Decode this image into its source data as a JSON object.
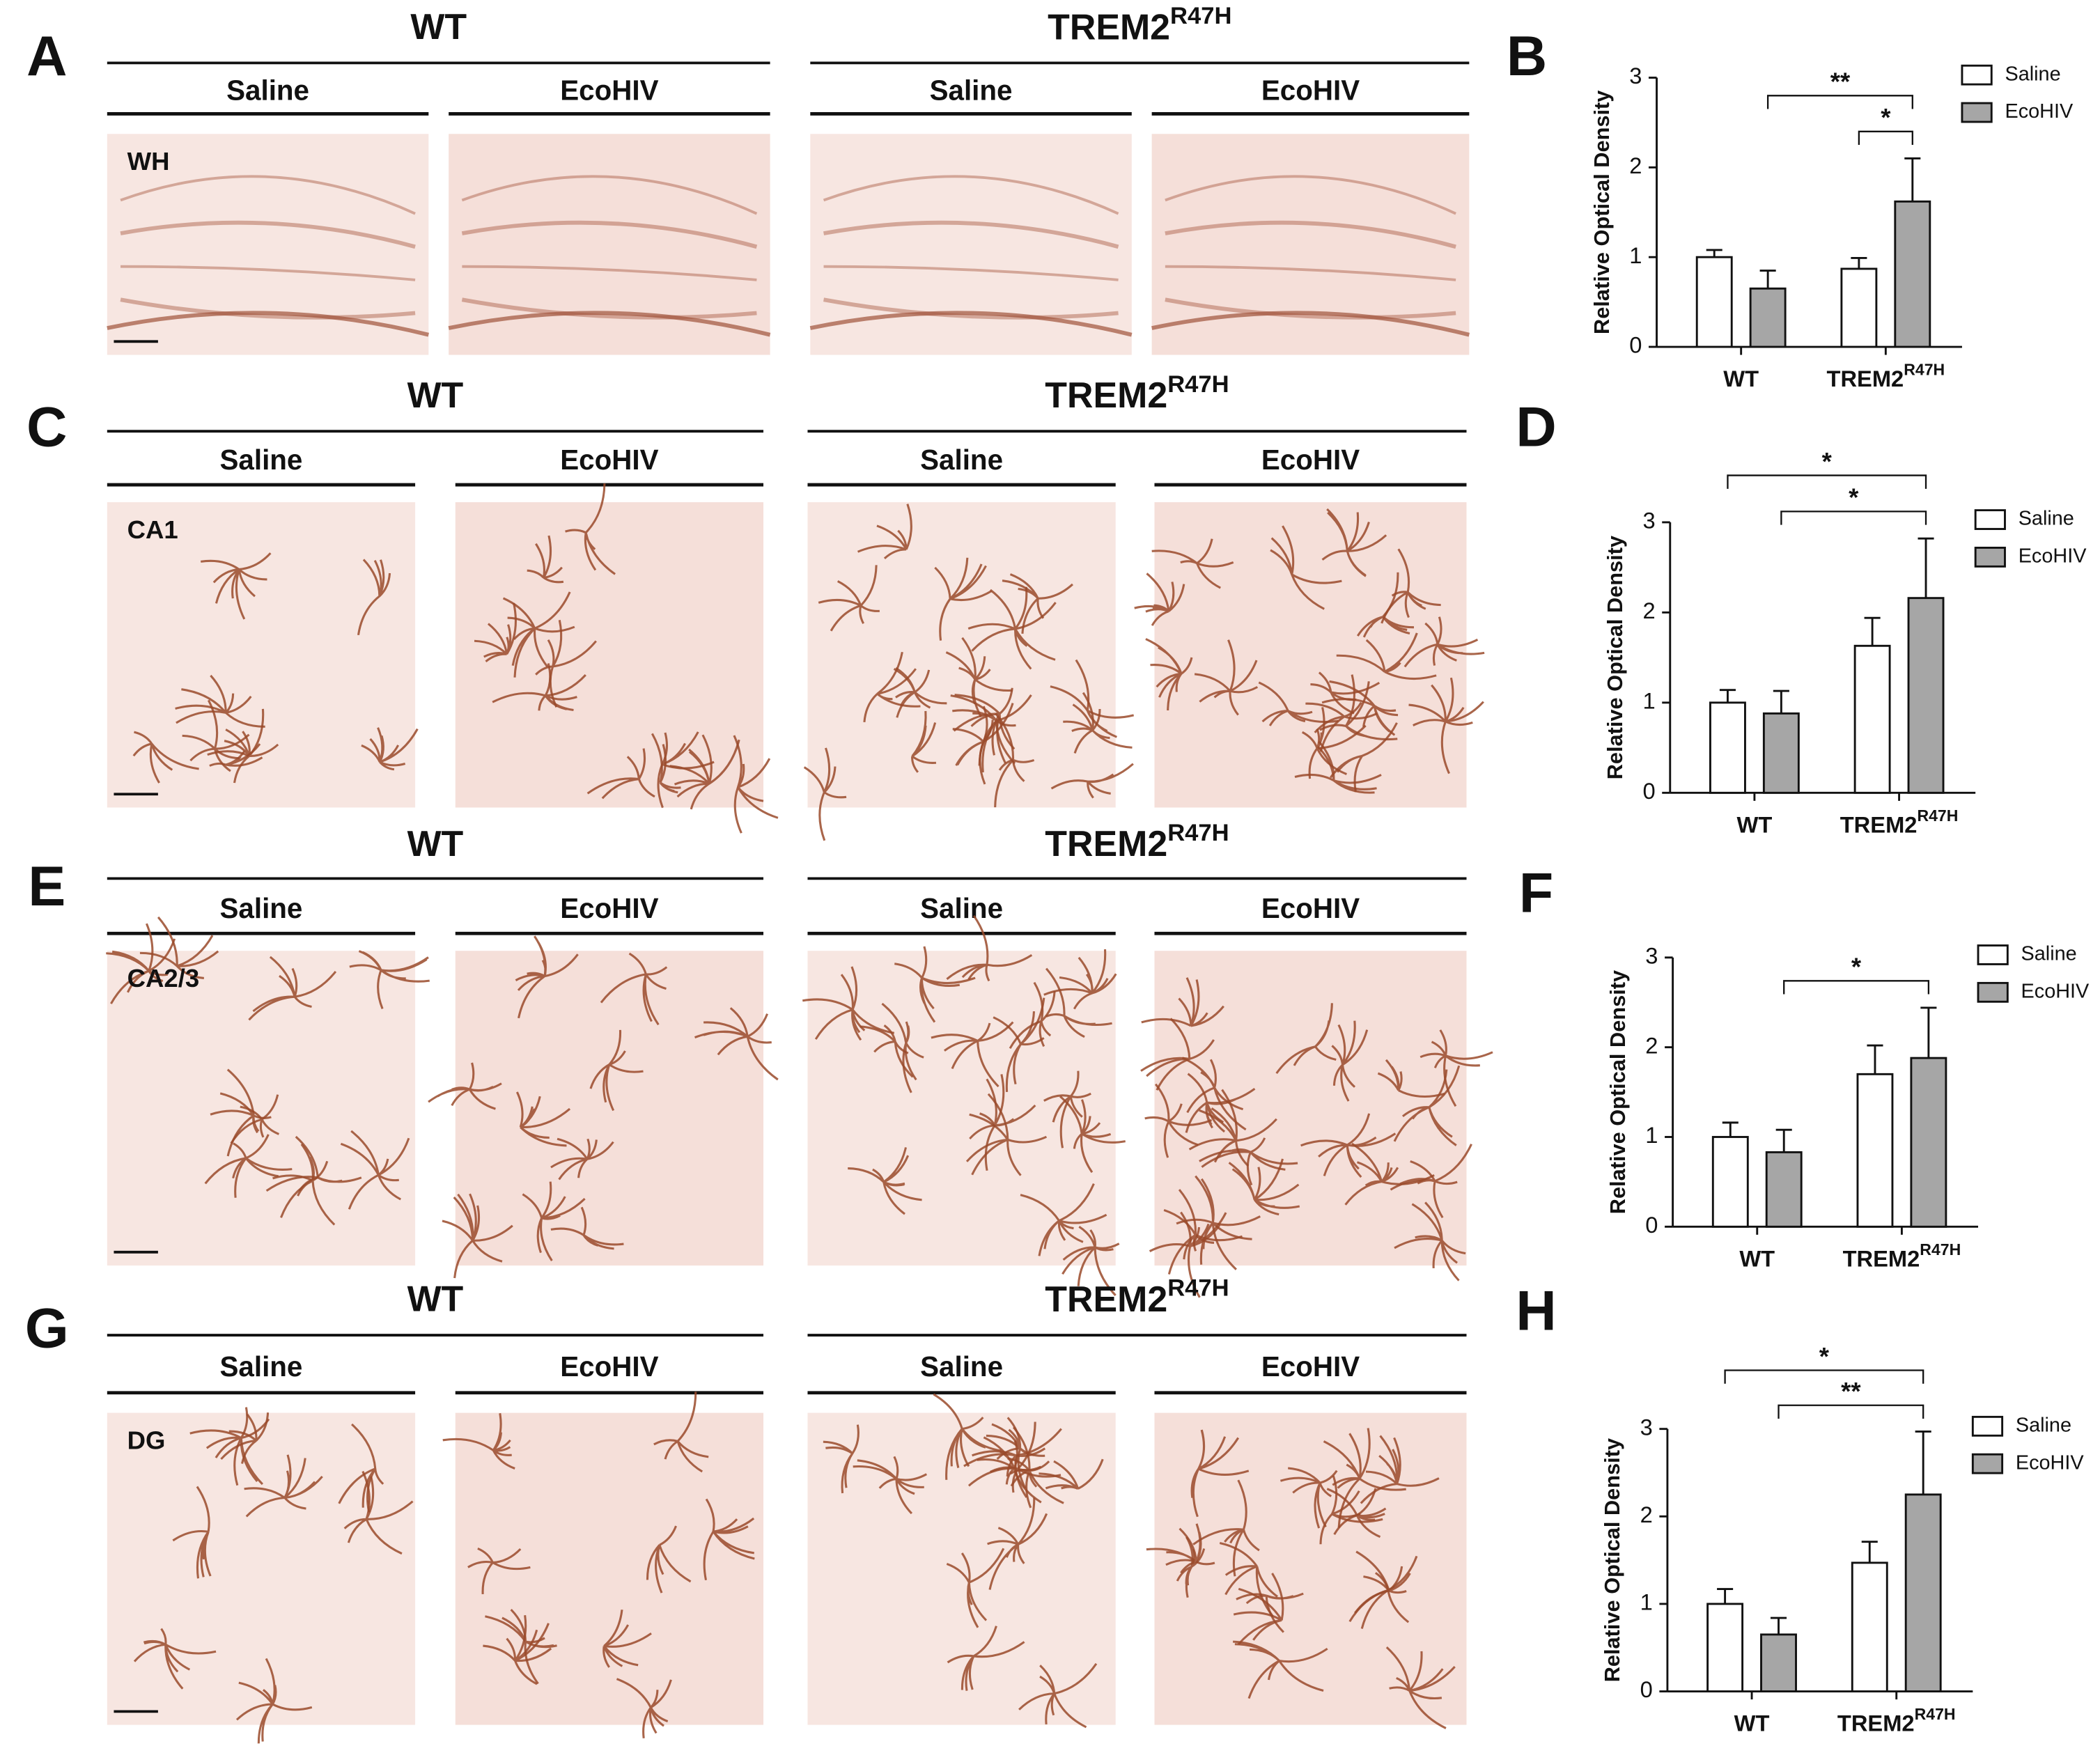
{
  "figure": {
    "rows": [
      {
        "letter": "A",
        "region": "WH",
        "wt": "WT",
        "trem2": "TREM2",
        "trem2_sup": "R47H",
        "conditions": [
          "Saline",
          "EcoHIV",
          "Saline",
          "EcoHIV"
        ]
      },
      {
        "letter": "C",
        "region": "CA1",
        "wt": "WT",
        "trem2": "TREM2",
        "trem2_sup": "R47H",
        "conditions": [
          "Saline",
          "EcoHIV",
          "Saline",
          "EcoHIV"
        ]
      },
      {
        "letter": "E",
        "region": "CA2/3",
        "wt": "WT",
        "trem2": "TREM2",
        "trem2_sup": "R47H",
        "conditions": [
          "Saline",
          "EcoHIV",
          "Saline",
          "EcoHIV"
        ]
      },
      {
        "letter": "G",
        "region": "DG",
        "wt": "WT",
        "trem2": "TREM2",
        "trem2_sup": "R47H",
        "conditions": [
          "Saline",
          "EcoHIV",
          "Saline",
          "EcoHIV"
        ]
      }
    ]
  },
  "chart_data": [
    {
      "type": "bar",
      "letter": "B",
      "ylabel": "Relative Optical Density",
      "categories": [
        {
          "label": "WT"
        },
        {
          "label": "TREM2",
          "sup": "R47H"
        }
      ],
      "series": [
        {
          "name": "Saline",
          "color": "#ffffff",
          "values": [
            1.0,
            0.87
          ],
          "errors": [
            0.08,
            0.12
          ]
        },
        {
          "name": "EcoHIV",
          "color": "#a6a6a6",
          "values": [
            0.65,
            1.62
          ],
          "errors": [
            0.2,
            0.48
          ]
        }
      ],
      "ylim": [
        0,
        3
      ],
      "yticks": [
        0,
        1,
        2,
        3
      ],
      "brackets": [
        {
          "label": "*",
          "from": {
            "category": 1,
            "series": 0
          },
          "to": {
            "category": 1,
            "series": 1
          }
        },
        {
          "label": "**",
          "from": {
            "category": 0,
            "series": 1
          },
          "to": {
            "category": 1,
            "series": 1
          }
        }
      ]
    },
    {
      "type": "bar",
      "letter": "D",
      "ylabel": "Relative Optical Density",
      "categories": [
        {
          "label": "WT"
        },
        {
          "label": "TREM2",
          "sup": "R47H"
        }
      ],
      "series": [
        {
          "name": "Saline",
          "color": "#ffffff",
          "values": [
            1.0,
            1.63
          ],
          "errors": [
            0.14,
            0.31
          ]
        },
        {
          "name": "EcoHIV",
          "color": "#a6a6a6",
          "values": [
            0.88,
            2.16
          ],
          "errors": [
            0.25,
            0.66
          ]
        }
      ],
      "ylim": [
        0,
        3
      ],
      "yticks": [
        0,
        1,
        2,
        3
      ],
      "brackets": [
        {
          "label": "*",
          "from": {
            "category": 0,
            "series": 1
          },
          "to": {
            "category": 1,
            "series": 1
          }
        },
        {
          "label": "*",
          "from": {
            "category": 0,
            "series": 0
          },
          "to": {
            "category": 1,
            "series": 1
          }
        }
      ]
    },
    {
      "type": "bar",
      "letter": "F",
      "ylabel": "Relative Optical Density",
      "categories": [
        {
          "label": "WT"
        },
        {
          "label": "TREM2",
          "sup": "R47H"
        }
      ],
      "series": [
        {
          "name": "Saline",
          "color": "#ffffff",
          "values": [
            1.0,
            1.7
          ],
          "errors": [
            0.16,
            0.32
          ]
        },
        {
          "name": "EcoHIV",
          "color": "#a6a6a6",
          "values": [
            0.83,
            1.88
          ],
          "errors": [
            0.25,
            0.56
          ]
        }
      ],
      "ylim": [
        0,
        3
      ],
      "yticks": [
        0,
        1,
        2,
        3
      ],
      "brackets": [
        {
          "label": "*",
          "from": {
            "category": 0,
            "series": 1
          },
          "to": {
            "category": 1,
            "series": 1
          }
        }
      ]
    },
    {
      "type": "bar",
      "letter": "H",
      "ylabel": "Relative Optical Density",
      "categories": [
        {
          "label": "WT"
        },
        {
          "label": "TREM2",
          "sup": "R47H"
        }
      ],
      "series": [
        {
          "name": "Saline",
          "color": "#ffffff",
          "values": [
            1.0,
            1.47
          ],
          "errors": [
            0.17,
            0.24
          ]
        },
        {
          "name": "EcoHIV",
          "color": "#a6a6a6",
          "values": [
            0.65,
            2.25
          ],
          "errors": [
            0.19,
            0.72
          ]
        }
      ],
      "ylim": [
        0,
        3
      ],
      "yticks": [
        0,
        1,
        2,
        3
      ],
      "brackets": [
        {
          "label": "**",
          "from": {
            "category": 0,
            "series": 1
          },
          "to": {
            "category": 1,
            "series": 1
          }
        },
        {
          "label": "*",
          "from": {
            "category": 0,
            "series": 0
          },
          "to": {
            "category": 1,
            "series": 1
          }
        }
      ]
    }
  ]
}
